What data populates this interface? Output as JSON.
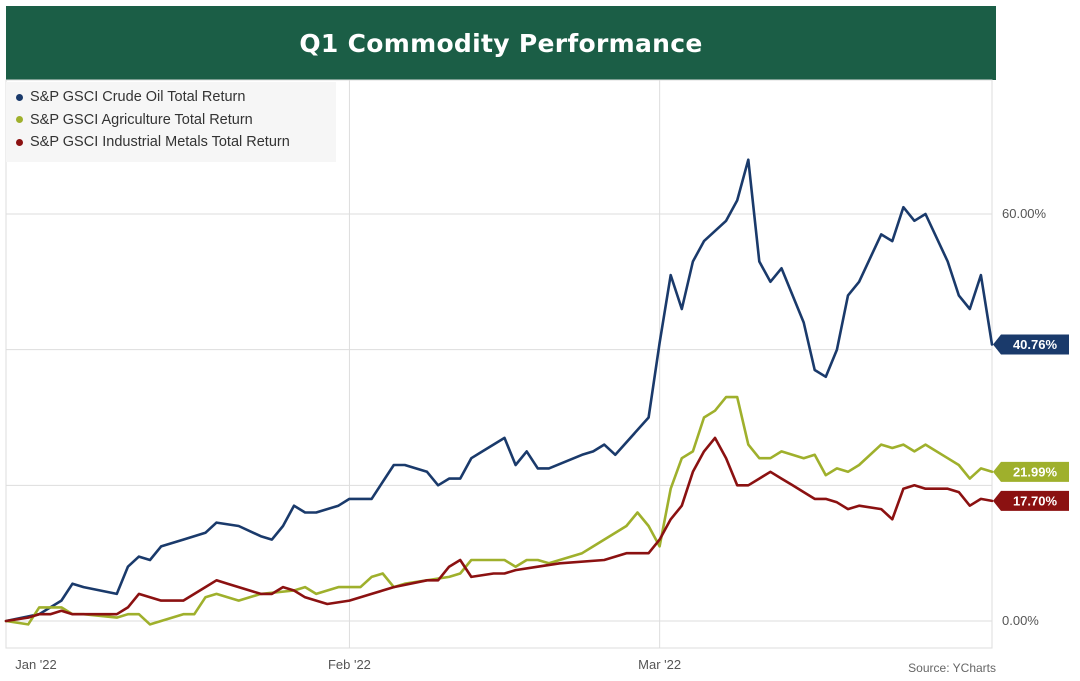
{
  "header": {
    "title": "Q1 Commodity Performance"
  },
  "source": "Source: YCharts",
  "colors": {
    "title_bg": "#1b5e46",
    "grid": "#dddddd",
    "crude": "#1a3a6b",
    "agriculture": "#9fb02c",
    "metals": "#8b1111"
  },
  "chart_data": {
    "type": "line",
    "title": "Q1 Commodity Performance",
    "xlabel": "",
    "ylabel": "",
    "x_ticks": [
      "Jan '22",
      "Feb '22",
      "Mar '22"
    ],
    "y_ticks": [
      "0.00%",
      "60.00%"
    ],
    "ylim": [
      -5,
      75
    ],
    "xlim": [
      0,
      89
    ],
    "x_tick_positions": [
      0,
      31,
      59
    ],
    "grid": true,
    "legend_position": "top-left",
    "series": [
      {
        "name": "S&P GSCI Crude Oil Total Return",
        "key": "crude",
        "end_label": "40.76%",
        "points": [
          [
            0,
            0
          ],
          [
            3,
            1
          ],
          [
            5,
            3
          ],
          [
            6,
            5.5
          ],
          [
            7,
            5
          ],
          [
            10,
            4
          ],
          [
            11,
            8
          ],
          [
            12,
            9.5
          ],
          [
            13,
            9
          ],
          [
            14,
            11
          ],
          [
            16,
            12
          ],
          [
            18,
            13
          ],
          [
            19,
            14.5
          ],
          [
            21,
            14
          ],
          [
            23,
            12.5
          ],
          [
            24,
            12
          ],
          [
            25,
            14
          ],
          [
            26,
            17
          ],
          [
            27,
            16
          ],
          [
            28,
            16
          ],
          [
            30,
            17
          ],
          [
            31,
            18
          ],
          [
            32,
            18
          ],
          [
            33,
            18
          ],
          [
            35,
            23
          ],
          [
            36,
            23
          ],
          [
            37,
            22.5
          ],
          [
            38,
            22
          ],
          [
            39,
            20
          ],
          [
            40,
            21
          ],
          [
            41,
            21
          ],
          [
            42,
            24
          ],
          [
            43,
            25
          ],
          [
            45,
            27
          ],
          [
            46,
            23
          ],
          [
            47,
            25
          ],
          [
            48,
            22.5
          ],
          [
            49,
            22.5
          ],
          [
            52,
            24.5
          ],
          [
            53,
            25
          ],
          [
            54,
            26
          ],
          [
            55,
            24.5
          ],
          [
            58,
            30
          ],
          [
            59,
            41
          ],
          [
            60,
            51
          ],
          [
            61,
            46
          ],
          [
            62,
            53
          ],
          [
            63,
            56
          ],
          [
            65,
            59
          ],
          [
            66,
            62
          ],
          [
            67,
            68
          ],
          [
            68,
            53
          ],
          [
            69,
            50
          ],
          [
            70,
            52
          ],
          [
            71,
            48
          ],
          [
            72,
            44
          ],
          [
            73,
            37
          ],
          [
            74,
            36
          ],
          [
            75,
            40
          ],
          [
            76,
            48
          ],
          [
            77,
            50
          ],
          [
            79,
            57
          ],
          [
            80,
            56
          ],
          [
            81,
            61
          ],
          [
            82,
            59
          ],
          [
            83,
            60
          ],
          [
            85,
            53
          ],
          [
            86,
            48
          ],
          [
            87,
            46
          ],
          [
            88,
            51
          ],
          [
            89,
            40.76
          ]
        ]
      },
      {
        "name": "S&P GSCI Agriculture Total Return",
        "key": "agriculture",
        "end_label": "21.99%",
        "points": [
          [
            0,
            0
          ],
          [
            2,
            -0.5
          ],
          [
            3,
            2
          ],
          [
            5,
            2
          ],
          [
            6,
            1
          ],
          [
            7,
            1
          ],
          [
            10,
            0.5
          ],
          [
            11,
            1
          ],
          [
            12,
            1
          ],
          [
            13,
            -0.5
          ],
          [
            16,
            1
          ],
          [
            17,
            1
          ],
          [
            18,
            3.5
          ],
          [
            19,
            4
          ],
          [
            21,
            3
          ],
          [
            23,
            4
          ],
          [
            26,
            4.5
          ],
          [
            27,
            5
          ],
          [
            28,
            4
          ],
          [
            30,
            5
          ],
          [
            32,
            5
          ],
          [
            33,
            6.5
          ],
          [
            34,
            7
          ],
          [
            35,
            5
          ],
          [
            36,
            5.5
          ],
          [
            40,
            6.5
          ],
          [
            41,
            7
          ],
          [
            42,
            9
          ],
          [
            43,
            9
          ],
          [
            44,
            9
          ],
          [
            45,
            9
          ],
          [
            46,
            8
          ],
          [
            47,
            9
          ],
          [
            48,
            9
          ],
          [
            49,
            8.5
          ],
          [
            52,
            10
          ],
          [
            53,
            11
          ],
          [
            56,
            14
          ],
          [
            57,
            16
          ],
          [
            58,
            14
          ],
          [
            59,
            11
          ],
          [
            60,
            19.5
          ],
          [
            61,
            24
          ],
          [
            62,
            25
          ],
          [
            63,
            30
          ],
          [
            64,
            31
          ],
          [
            65,
            33
          ],
          [
            66,
            33
          ],
          [
            67,
            26
          ],
          [
            68,
            24
          ],
          [
            69,
            24
          ],
          [
            70,
            25
          ],
          [
            72,
            24
          ],
          [
            73,
            24.5
          ],
          [
            74,
            21.5
          ],
          [
            75,
            22.5
          ],
          [
            76,
            22
          ],
          [
            77,
            23
          ],
          [
            79,
            26
          ],
          [
            80,
            25.5
          ],
          [
            81,
            26
          ],
          [
            82,
            25
          ],
          [
            83,
            26
          ],
          [
            85,
            24
          ],
          [
            86,
            23
          ],
          [
            87,
            21
          ],
          [
            88,
            22.5
          ],
          [
            89,
            21.99
          ]
        ]
      },
      {
        "name": "S&P GSCI Industrial Metals Total Return",
        "key": "metals",
        "end_label": "17.70%",
        "points": [
          [
            0,
            0
          ],
          [
            2,
            0.5
          ],
          [
            3,
            1
          ],
          [
            4,
            1
          ],
          [
            5,
            1.5
          ],
          [
            6,
            1
          ],
          [
            10,
            1
          ],
          [
            11,
            2
          ],
          [
            12,
            4
          ],
          [
            14,
            3
          ],
          [
            16,
            3
          ],
          [
            18,
            5
          ],
          [
            19,
            6
          ],
          [
            20,
            5.5
          ],
          [
            23,
            4
          ],
          [
            24,
            4
          ],
          [
            25,
            5
          ],
          [
            26,
            4.5
          ],
          [
            27,
            3.5
          ],
          [
            29,
            2.5
          ],
          [
            31,
            3
          ],
          [
            32,
            3.5
          ],
          [
            33,
            4
          ],
          [
            35,
            5
          ],
          [
            38,
            6
          ],
          [
            39,
            6
          ],
          [
            40,
            8
          ],
          [
            41,
            9
          ],
          [
            42,
            6.5
          ],
          [
            44,
            7
          ],
          [
            45,
            7
          ],
          [
            46,
            7.5
          ],
          [
            48,
            8
          ],
          [
            50,
            8.5
          ],
          [
            54,
            9
          ],
          [
            55,
            9.5
          ],
          [
            56,
            10
          ],
          [
            58,
            10
          ],
          [
            59,
            12
          ],
          [
            60,
            15
          ],
          [
            61,
            17
          ],
          [
            62,
            22
          ],
          [
            63,
            25
          ],
          [
            64,
            27
          ],
          [
            65,
            24
          ],
          [
            66,
            20
          ],
          [
            67,
            20
          ],
          [
            68,
            21
          ],
          [
            69,
            22
          ],
          [
            70,
            21
          ],
          [
            71,
            20
          ],
          [
            72,
            19
          ],
          [
            73,
            18
          ],
          [
            74,
            18
          ],
          [
            75,
            17.5
          ],
          [
            76,
            16.5
          ],
          [
            77,
            17
          ],
          [
            79,
            16.5
          ],
          [
            80,
            15
          ],
          [
            81,
            19.5
          ],
          [
            82,
            20
          ],
          [
            83,
            19.5
          ],
          [
            85,
            19.5
          ],
          [
            86,
            19
          ],
          [
            87,
            17
          ],
          [
            88,
            18
          ],
          [
            89,
            17.7
          ]
        ]
      }
    ]
  }
}
